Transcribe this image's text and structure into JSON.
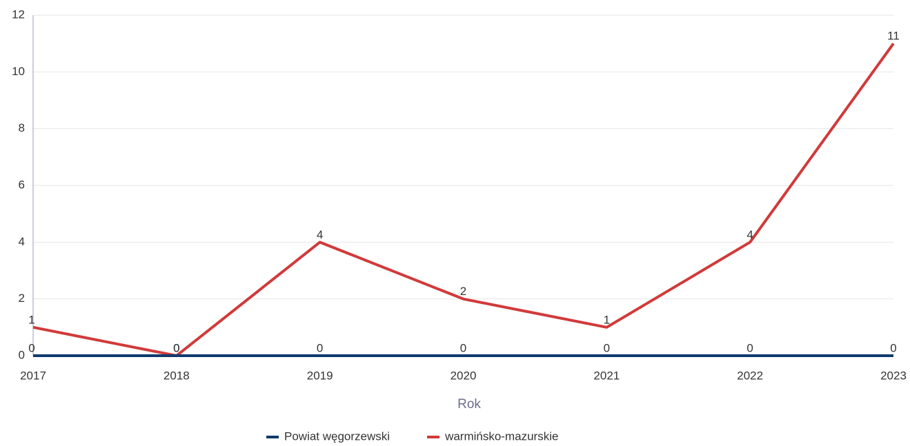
{
  "chart_data": {
    "type": "line",
    "x": [
      2017,
      2018,
      2019,
      2020,
      2021,
      2022,
      2023
    ],
    "xlim": [
      2017,
      2023
    ],
    "xticks": [
      2017,
      2018,
      2019,
      2020,
      2021,
      2022,
      2023
    ],
    "ylim": [
      0,
      12
    ],
    "yticks": [
      0,
      2,
      4,
      6,
      8,
      10,
      12
    ],
    "x_label": "Rok",
    "grid": true,
    "legend": "bottom",
    "series": [
      {
        "name": "Powiat węgorzewski",
        "color": "#0e3a6e",
        "values": [
          0,
          0,
          0,
          0,
          0,
          0,
          0
        ]
      },
      {
        "name": "warmińsko-mazurskie",
        "color": "#d13a3a",
        "values": [
          1,
          0,
          4,
          2,
          1,
          4,
          11
        ]
      }
    ]
  }
}
